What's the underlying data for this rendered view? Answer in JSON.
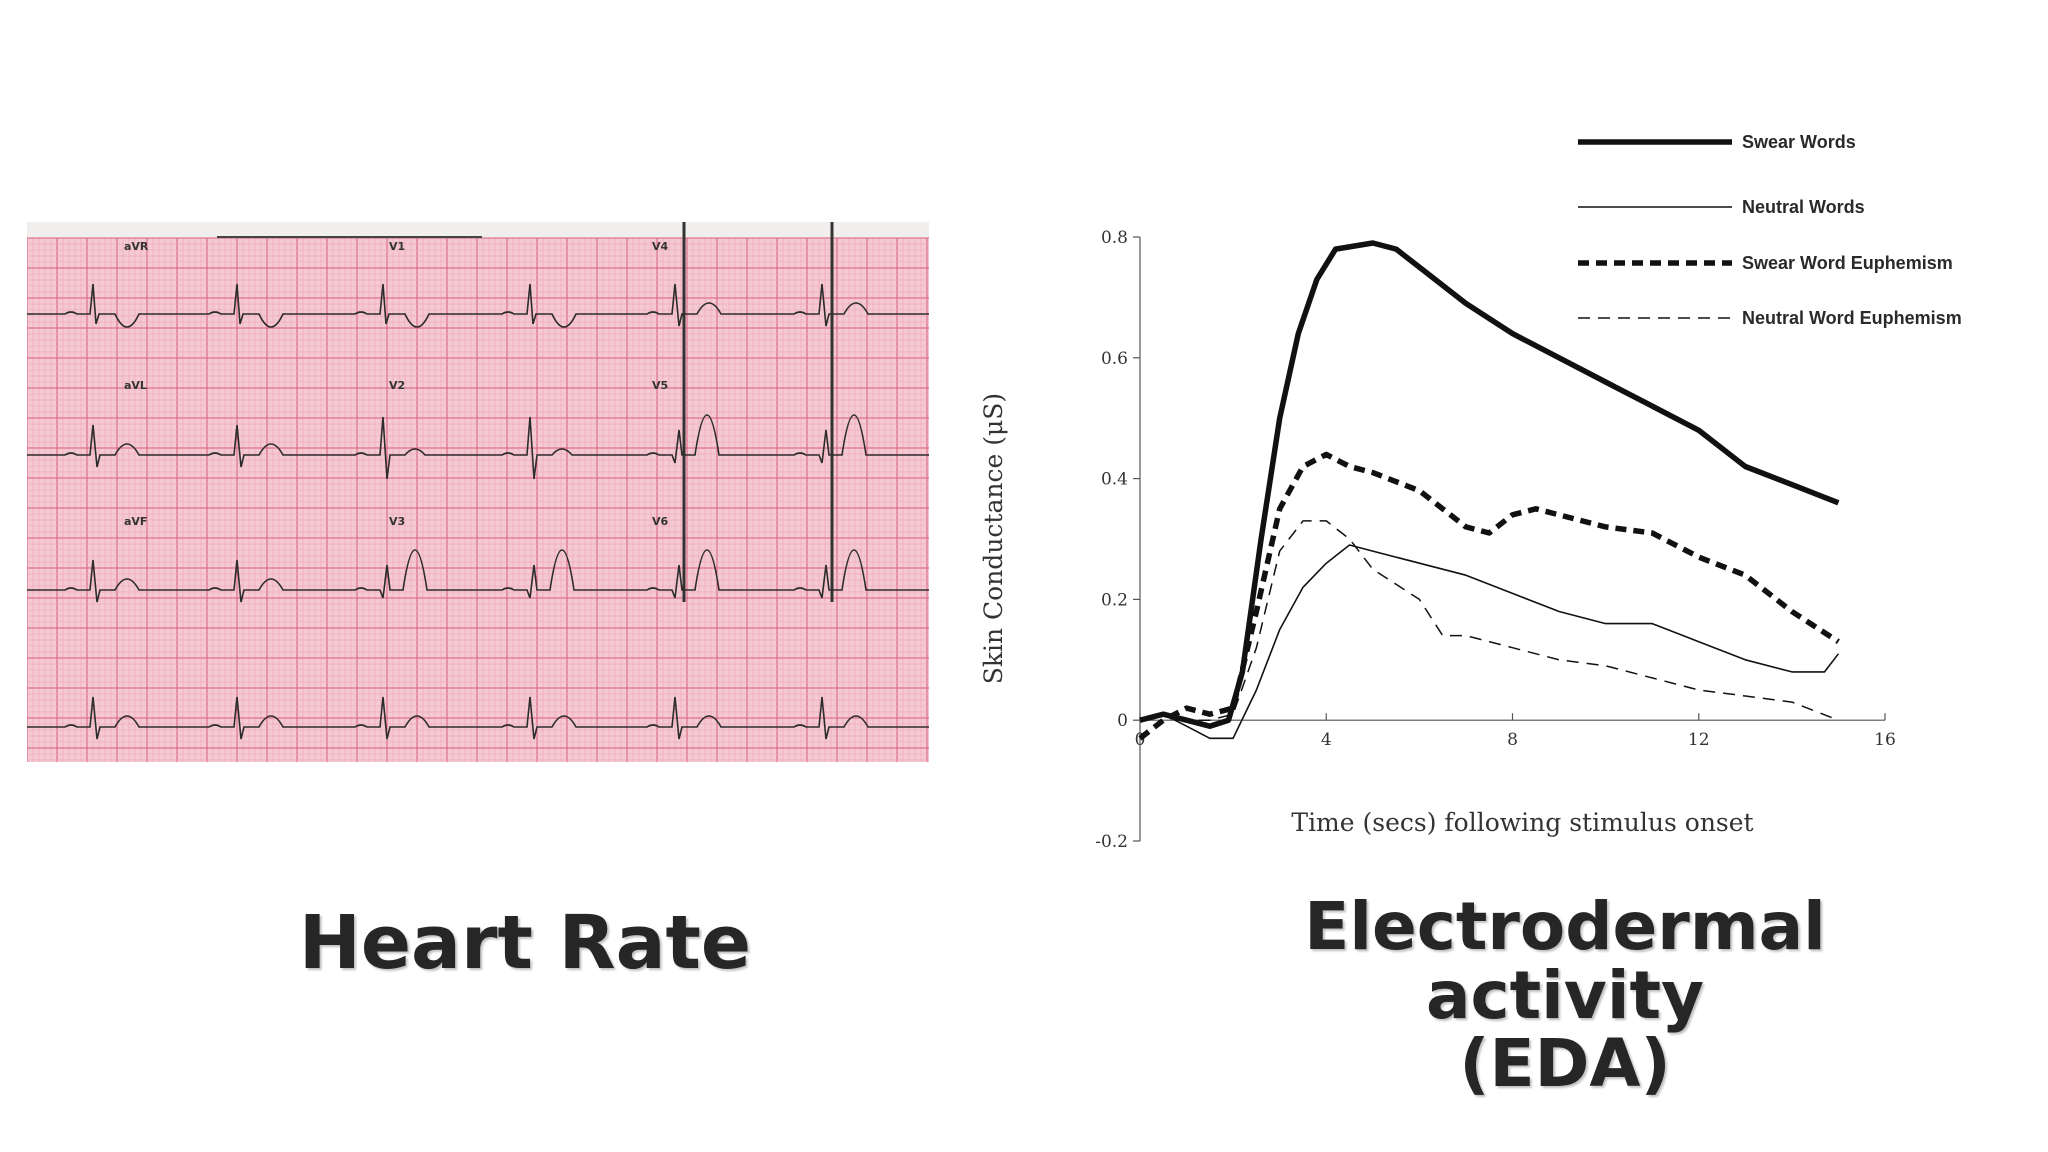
{
  "captions": {
    "heart_rate": "Heart Rate",
    "eda_line1": "Electrodermal activity",
    "eda_line2": "(EDA)"
  },
  "ecg_strip": {
    "lead_labels": [
      "aVR",
      "V1",
      "V4",
      "aVL",
      "V2",
      "V5",
      "aVF",
      "V3",
      "V6"
    ],
    "colors": {
      "paper": "#f4c9d2",
      "grid_minor": "#ee9fb1",
      "grid_major": "#d95d7c",
      "trace": "#2c2c2c"
    }
  },
  "colors": {
    "axis": "#555555",
    "series": "#111111"
  },
  "chart_data": {
    "type": "line",
    "title": "",
    "xlabel": "Time (secs) following stimulus onset",
    "ylabel": "Skin Conductance (μS)",
    "xlim": [
      0,
      16
    ],
    "ylim": [
      -0.2,
      0.8
    ],
    "x_ticks": [
      0,
      4,
      8,
      12,
      16
    ],
    "y_ticks": [
      -0.2,
      0,
      0.2,
      0.4,
      0.6,
      0.8
    ],
    "x_tick_labels": [
      "0",
      "4",
      "8",
      "12",
      "16"
    ],
    "y_tick_labels": [
      "-0.2",
      "0",
      "0.2",
      "0.4",
      "0.6",
      "0.8"
    ],
    "grid": false,
    "legend_position": "top-right",
    "series": [
      {
        "name": "Swear Words",
        "style": "thick-solid",
        "points": [
          [
            0,
            0
          ],
          [
            0.5,
            0.01
          ],
          [
            1,
            0.0
          ],
          [
            1.5,
            -0.01
          ],
          [
            1.9,
            0.0
          ],
          [
            2.2,
            0.08
          ],
          [
            2.6,
            0.3
          ],
          [
            3,
            0.5
          ],
          [
            3.4,
            0.64
          ],
          [
            3.8,
            0.73
          ],
          [
            4.2,
            0.78
          ],
          [
            5,
            0.79
          ],
          [
            5.5,
            0.78
          ],
          [
            6,
            0.75
          ],
          [
            7,
            0.69
          ],
          [
            8,
            0.64
          ],
          [
            9,
            0.6
          ],
          [
            10,
            0.56
          ],
          [
            11,
            0.52
          ],
          [
            12,
            0.48
          ],
          [
            13,
            0.42
          ],
          [
            14,
            0.39
          ],
          [
            15,
            0.36
          ]
        ]
      },
      {
        "name": "Neutral Words",
        "style": "thin-solid",
        "points": [
          [
            0,
            0
          ],
          [
            0.5,
            0.01
          ],
          [
            1,
            -0.01
          ],
          [
            1.5,
            -0.03
          ],
          [
            2,
            -0.03
          ],
          [
            2.5,
            0.05
          ],
          [
            3,
            0.15
          ],
          [
            3.5,
            0.22
          ],
          [
            4,
            0.26
          ],
          [
            4.5,
            0.29
          ],
          [
            5,
            0.28
          ],
          [
            6,
            0.26
          ],
          [
            7,
            0.24
          ],
          [
            8,
            0.21
          ],
          [
            9,
            0.18
          ],
          [
            10,
            0.16
          ],
          [
            11,
            0.16
          ],
          [
            12,
            0.13
          ],
          [
            13,
            0.1
          ],
          [
            14,
            0.08
          ],
          [
            14.7,
            0.08
          ],
          [
            15,
            0.11
          ]
        ]
      },
      {
        "name": "Swear Word Euphemism",
        "style": "thick-dashed",
        "points": [
          [
            0,
            -0.03
          ],
          [
            0.5,
            0.0
          ],
          [
            1,
            0.02
          ],
          [
            1.5,
            0.01
          ],
          [
            2,
            0.02
          ],
          [
            2.5,
            0.18
          ],
          [
            3,
            0.35
          ],
          [
            3.5,
            0.42
          ],
          [
            4,
            0.44
          ],
          [
            4.5,
            0.42
          ],
          [
            5,
            0.41
          ],
          [
            6,
            0.38
          ],
          [
            7,
            0.32
          ],
          [
            7.5,
            0.31
          ],
          [
            8,
            0.34
          ],
          [
            8.5,
            0.35
          ],
          [
            9.5,
            0.33
          ],
          [
            10,
            0.32
          ],
          [
            11,
            0.31
          ],
          [
            12,
            0.27
          ],
          [
            13,
            0.24
          ],
          [
            14,
            0.18
          ],
          [
            15,
            0.13
          ]
        ]
      },
      {
        "name": "Neutral Word Euphemism",
        "style": "thin-dashed",
        "points": [
          [
            0,
            0
          ],
          [
            0.5,
            0.01
          ],
          [
            1,
            0.0
          ],
          [
            1.5,
            0.0
          ],
          [
            2,
            0.01
          ],
          [
            2.5,
            0.12
          ],
          [
            3,
            0.28
          ],
          [
            3.5,
            0.33
          ],
          [
            4,
            0.33
          ],
          [
            4.5,
            0.3
          ],
          [
            5,
            0.25
          ],
          [
            6,
            0.2
          ],
          [
            6.5,
            0.14
          ],
          [
            7,
            0.14
          ],
          [
            8,
            0.12
          ],
          [
            9,
            0.1
          ],
          [
            10,
            0.09
          ],
          [
            11,
            0.07
          ],
          [
            12,
            0.05
          ],
          [
            13,
            0.04
          ],
          [
            14,
            0.03
          ],
          [
            15,
            0.0
          ]
        ]
      }
    ]
  }
}
